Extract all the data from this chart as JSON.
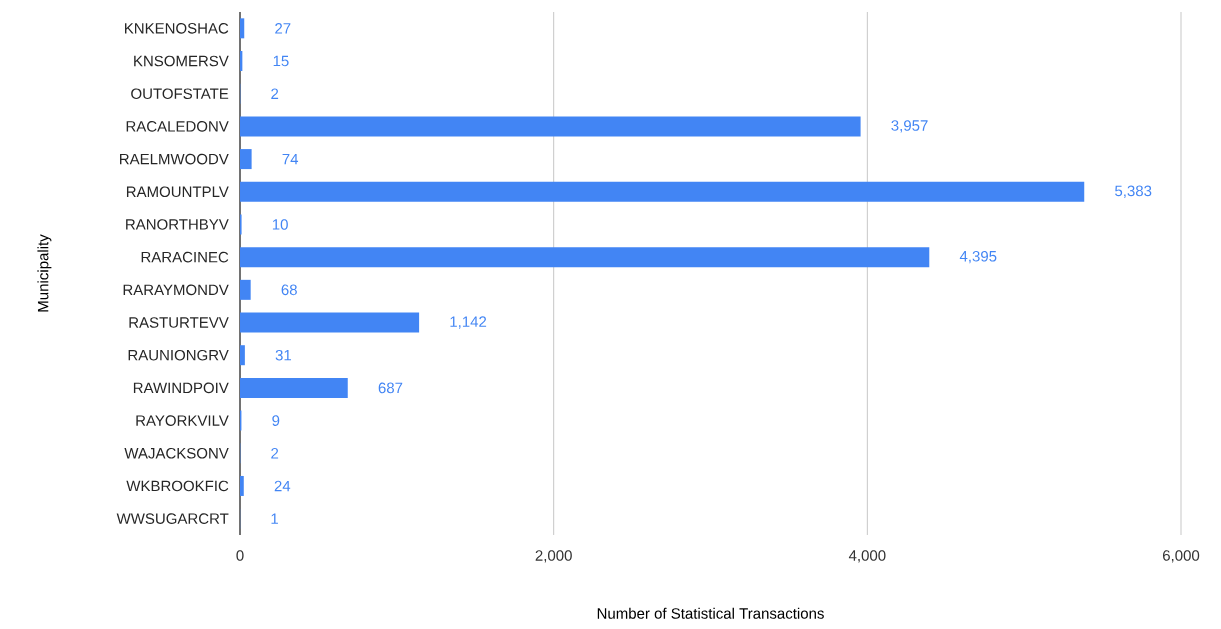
{
  "chart_data": {
    "type": "bar",
    "orientation": "horizontal",
    "xlabel": "Number of Statistical Transactions",
    "ylabel": "Municipality",
    "categories": [
      "KNKENOSHAC",
      "KNSOMERSV",
      "OUTOFSTATE",
      "RACALEDONV",
      "RAELMWOODV",
      "RAMOUNTPLV",
      "RANORTHBYV",
      "RARACINEC",
      "RARAYMONDV",
      "RASTURTEVV",
      "RAUNIONGRV",
      "RAWINDPOIV",
      "RAYORKVILV",
      "WAJACKSONV",
      "WKBROOKFIC",
      "WWSUGARCRT"
    ],
    "values": [
      27,
      15,
      2,
      3957,
      74,
      5383,
      10,
      4395,
      68,
      1142,
      31,
      687,
      9,
      2,
      24,
      1
    ],
    "value_labels": [
      "27",
      "15",
      "2",
      "3,957",
      "74",
      "5,383",
      "10",
      "4,395",
      "68",
      "1,142",
      "31",
      "687",
      "9",
      "2",
      "24",
      "1"
    ],
    "color": "#4285f4",
    "xlim": [
      0,
      6000
    ],
    "xticks": [
      {
        "value": 0,
        "label": "0"
      },
      {
        "value": 2000,
        "label": "2,000"
      },
      {
        "value": 4000,
        "label": "4,000"
      },
      {
        "value": 6000,
        "label": "6,000"
      }
    ],
    "grid": "x"
  }
}
